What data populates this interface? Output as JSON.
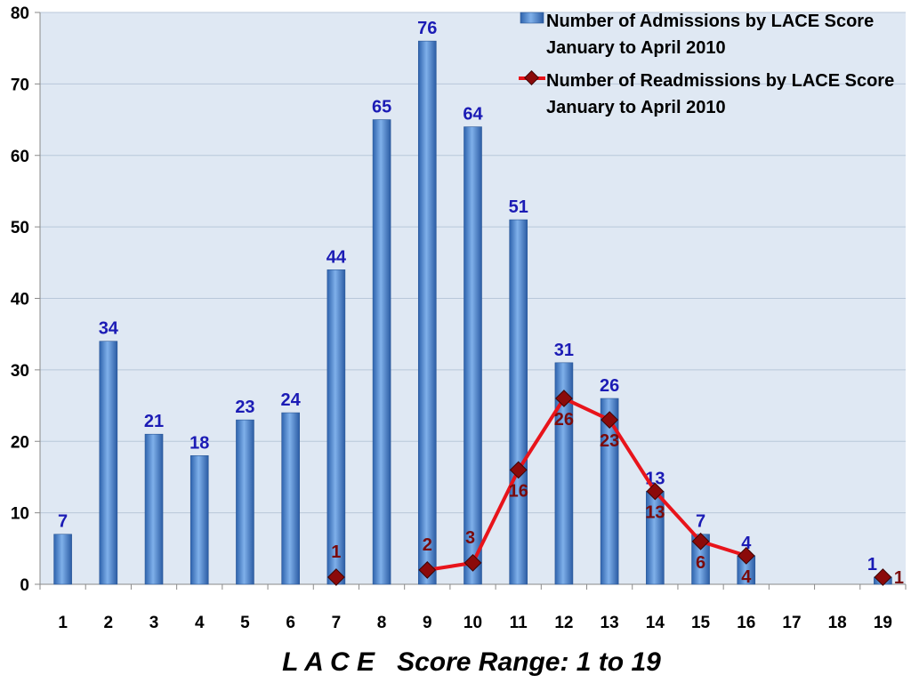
{
  "chart_data": {
    "type": "bar",
    "title": "",
    "xlabel": "L A C E   Score Range: 1 to 19",
    "ylabel": "",
    "ylim": [
      0,
      80
    ],
    "yticks": [
      0,
      10,
      20,
      30,
      40,
      50,
      60,
      70,
      80
    ],
    "grid": true,
    "legend_position": "top-right",
    "categories": [
      "1",
      "2",
      "3",
      "4",
      "5",
      "6",
      "7",
      "8",
      "9",
      "10",
      "11",
      "12",
      "13",
      "14",
      "15",
      "16",
      "17",
      "18",
      "19"
    ],
    "series": [
      {
        "name": "Number of Admissions by LACE Score January to April 2010",
        "legend_lines": [
          "Number of Admissions by LACE Score",
          "January to April 2010"
        ],
        "type": "bar",
        "color": "#4a86d4",
        "values": [
          7,
          34,
          21,
          18,
          23,
          24,
          44,
          65,
          76,
          64,
          51,
          31,
          26,
          13,
          7,
          4,
          null,
          null,
          1
        ],
        "labels": [
          "7",
          "34",
          "21",
          "18",
          "23",
          "24",
          "44",
          "65",
          "76",
          "64",
          "51",
          "31",
          "26",
          "13",
          "7",
          "4",
          "",
          "",
          "1"
        ]
      },
      {
        "name": "Number of Readmissions by LACE Score January to April 2010",
        "legend_lines": [
          "Number of Readmissions by LACE Score",
          "January to April 2010"
        ],
        "type": "line",
        "color": "#e8141b",
        "marker_color": "#8b0a0a",
        "points": [
          {
            "x": "7",
            "y": 1
          },
          {
            "x": "9",
            "y": 2
          },
          {
            "x": "10",
            "y": 3
          },
          {
            "x": "11",
            "y": 16
          },
          {
            "x": "12",
            "y": 26
          },
          {
            "x": "13",
            "y": 23
          },
          {
            "x": "14",
            "y": 13
          },
          {
            "x": "15",
            "y": 6
          },
          {
            "x": "16",
            "y": 4
          },
          {
            "x": "19",
            "y": 1
          }
        ],
        "segments": [
          [
            "9",
            "10",
            "11",
            "12",
            "13",
            "14",
            "15",
            "16"
          ]
        ]
      }
    ],
    "colors": {
      "plot_bg": "#dfe8f3",
      "grid": "#b8c7d9",
      "axis": "#8a8a8a"
    }
  }
}
